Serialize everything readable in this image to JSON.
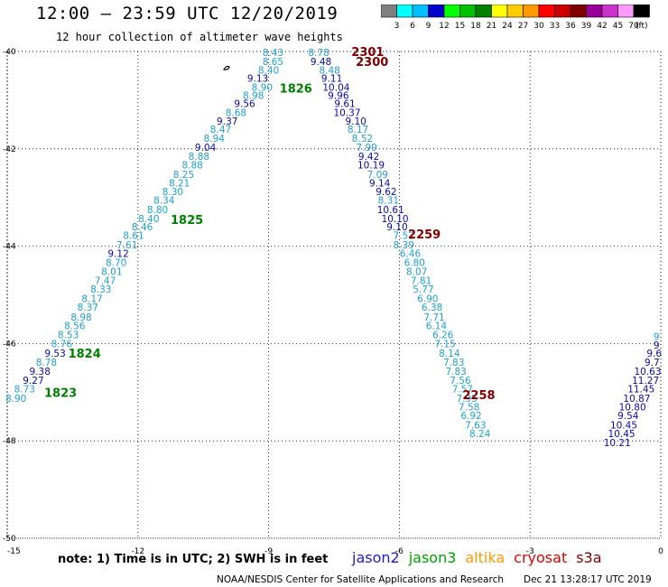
{
  "header": {
    "title": "12:00 – 23:59 UTC 12/20/2019",
    "subtitle": "12 hour collection of altimeter wave heights"
  },
  "legend": {
    "unit": "(ft)",
    "bins": [
      {
        "label": "3",
        "color": "#808080"
      },
      {
        "label": "6",
        "color": "#00ffff"
      },
      {
        "label": "9",
        "color": "#00bfff"
      },
      {
        "label": "12",
        "color": "#0000cd"
      },
      {
        "label": "15",
        "color": "#00ff00"
      },
      {
        "label": "18",
        "color": "#00c000"
      },
      {
        "label": "21",
        "color": "#008000"
      },
      {
        "label": "24",
        "color": "#ffff00"
      },
      {
        "label": "27",
        "color": "#ffcc00"
      },
      {
        "label": "30",
        "color": "#ff9900"
      },
      {
        "label": "33",
        "color": "#ff0000"
      },
      {
        "label": "36",
        "color": "#cc0000"
      },
      {
        "label": "39",
        "color": "#800000"
      },
      {
        "label": "42",
        "color": "#990099"
      },
      {
        "label": "45",
        "color": "#cc33cc"
      },
      {
        "label": "70",
        "color": "#ff99ff"
      },
      {
        "label": "",
        "color": "#000000"
      }
    ]
  },
  "map": {
    "lon_range": [
      -15,
      0
    ],
    "lat_range": [
      -50,
      -40
    ],
    "lon_ticks": [
      "-15",
      "-12",
      "-9",
      "-6",
      "-3",
      "0"
    ],
    "lat_ticks": [
      "-40",
      "-42",
      "-44",
      "-46",
      "-48",
      "-50"
    ],
    "grid": "dotted",
    "colors": {
      "light": "#1ea0d2",
      "dark": "#0a0ab4",
      "pass_green": "#008000",
      "pass_red": "#800000"
    },
    "tracks": [
      {
        "name": "west-track",
        "pass_labels": [
          {
            "text": "1826",
            "color": "pass_green",
            "lon": -8.75,
            "lat": -40.75
          },
          {
            "text": "1825",
            "color": "pass_green",
            "lon": -11.25,
            "lat": -43.45
          },
          {
            "text": "1824",
            "color": "pass_green",
            "lon": -13.6,
            "lat": -46.2
          },
          {
            "text": "1823",
            "color": "pass_green",
            "lon": -14.15,
            "lat": -47.0
          }
        ],
        "points": [
          {
            "v": "8.43",
            "c": "light",
            "lon": -8.9,
            "lat": -40.02
          },
          {
            "v": "8.65",
            "c": "light",
            "lon": -8.9,
            "lat": -40.2
          },
          {
            "v": "8.40",
            "c": "light",
            "lon": -9.0,
            "lat": -40.38
          },
          {
            "v": "9.13",
            "c": "dark",
            "lon": -9.25,
            "lat": -40.55
          },
          {
            "v": "8.90",
            "c": "light",
            "lon": -9.15,
            "lat": -40.73
          },
          {
            "v": "8.98",
            "c": "light",
            "lon": -9.35,
            "lat": -40.9
          },
          {
            "v": "9.56",
            "c": "dark",
            "lon": -9.55,
            "lat": -41.07
          },
          {
            "v": "8.68",
            "c": "light",
            "lon": -9.75,
            "lat": -41.25
          },
          {
            "v": "9.37",
            "c": "dark",
            "lon": -9.95,
            "lat": -41.43
          },
          {
            "v": "8.47",
            "c": "light",
            "lon": -10.1,
            "lat": -41.6
          },
          {
            "v": "8.94",
            "c": "light",
            "lon": -10.25,
            "lat": -41.78
          },
          {
            "v": "9.04",
            "c": "dark",
            "lon": -10.45,
            "lat": -41.97
          },
          {
            "v": "8.88",
            "c": "light",
            "lon": -10.6,
            "lat": -42.15
          },
          {
            "v": "8.88",
            "c": "light",
            "lon": -10.75,
            "lat": -42.33
          },
          {
            "v": "8.25",
            "c": "light",
            "lon": -10.95,
            "lat": -42.52
          },
          {
            "v": "8.21",
            "c": "light",
            "lon": -11.05,
            "lat": -42.7
          },
          {
            "v": "8.30",
            "c": "light",
            "lon": -11.2,
            "lat": -42.88
          },
          {
            "v": "8.34",
            "c": "light",
            "lon": -11.4,
            "lat": -43.05
          },
          {
            "v": "8.80",
            "c": "light",
            "lon": -11.55,
            "lat": -43.25
          },
          {
            "v": "8.40",
            "c": "light",
            "lon": -11.75,
            "lat": -43.43
          },
          {
            "v": "8.46",
            "c": "light",
            "lon": -11.9,
            "lat": -43.6
          },
          {
            "v": "8.61",
            "c": "light",
            "lon": -12.1,
            "lat": -43.78
          },
          {
            "v": "7.61",
            "c": "light",
            "lon": -12.25,
            "lat": -43.97
          },
          {
            "v": "9.12",
            "c": "dark",
            "lon": -12.45,
            "lat": -44.15
          },
          {
            "v": "8.70",
            "c": "light",
            "lon": -12.5,
            "lat": -44.33
          },
          {
            "v": "8.01",
            "c": "light",
            "lon": -12.6,
            "lat": -44.52
          },
          {
            "v": "7.47",
            "c": "light",
            "lon": -12.75,
            "lat": -44.7
          },
          {
            "v": "8.33",
            "c": "light",
            "lon": -12.85,
            "lat": -44.88
          },
          {
            "v": "8.17",
            "c": "light",
            "lon": -13.05,
            "lat": -45.07
          },
          {
            "v": "8.37",
            "c": "light",
            "lon": -13.15,
            "lat": -45.25
          },
          {
            "v": "8.98",
            "c": "light",
            "lon": -13.3,
            "lat": -45.45
          },
          {
            "v": "8.56",
            "c": "light",
            "lon": -13.45,
            "lat": -45.63
          },
          {
            "v": "8.53",
            "c": "light",
            "lon": -13.6,
            "lat": -45.82
          },
          {
            "v": "8.76",
            "c": "light",
            "lon": -13.75,
            "lat": -46.0
          },
          {
            "v": "9.53",
            "c": "dark",
            "lon": -13.9,
            "lat": -46.2
          },
          {
            "v": "8.78",
            "c": "light",
            "lon": -14.1,
            "lat": -46.38
          },
          {
            "v": "9.38",
            "c": "dark",
            "lon": -14.25,
            "lat": -46.57
          },
          {
            "v": "9.27",
            "c": "dark",
            "lon": -14.4,
            "lat": -46.75
          },
          {
            "v": "8.73",
            "c": "light",
            "lon": -14.6,
            "lat": -46.93
          },
          {
            "v": "8.90",
            "c": "light",
            "lon": -14.8,
            "lat": -47.12
          }
        ]
      },
      {
        "name": "middle-track",
        "pass_labels": [
          {
            "text": "2301",
            "color": "pass_red",
            "lon": -7.1,
            "lat": -40.0
          },
          {
            "text": "2300",
            "color": "pass_red",
            "lon": -7.0,
            "lat": -40.2
          },
          {
            "text": "2259",
            "color": "pass_red",
            "lon": -5.8,
            "lat": -43.75
          },
          {
            "text": "2258",
            "color": "pass_red",
            "lon": -4.55,
            "lat": -47.05
          }
        ],
        "points": [
          {
            "v": "8.78",
            "c": "light",
            "lon": -7.85,
            "lat": -40.02
          },
          {
            "v": "9.48",
            "c": "dark",
            "lon": -7.8,
            "lat": -40.2
          },
          {
            "v": "8.48",
            "c": "light",
            "lon": -7.6,
            "lat": -40.38
          },
          {
            "v": "9.11",
            "c": "dark",
            "lon": -7.55,
            "lat": -40.55
          },
          {
            "v": "10.04",
            "c": "dark",
            "lon": -7.45,
            "lat": -40.73
          },
          {
            "v": "9.96",
            "c": "dark",
            "lon": -7.4,
            "lat": -40.9
          },
          {
            "v": "9.61",
            "c": "dark",
            "lon": -7.25,
            "lat": -41.07
          },
          {
            "v": "10.37",
            "c": "dark",
            "lon": -7.2,
            "lat": -41.25
          },
          {
            "v": "9.10",
            "c": "dark",
            "lon": -7.0,
            "lat": -41.43
          },
          {
            "v": "8.17",
            "c": "light",
            "lon": -6.95,
            "lat": -41.6
          },
          {
            "v": "8.52",
            "c": "light",
            "lon": -6.85,
            "lat": -41.78
          },
          {
            "v": "7.99",
            "c": "light",
            "lon": -6.75,
            "lat": -41.97
          },
          {
            "v": "9.42",
            "c": "dark",
            "lon": -6.7,
            "lat": -42.15
          },
          {
            "v": "10.19",
            "c": "dark",
            "lon": -6.65,
            "lat": -42.33
          },
          {
            "v": "7.09",
            "c": "light",
            "lon": -6.5,
            "lat": -42.52
          },
          {
            "v": "9.14",
            "c": "dark",
            "lon": -6.45,
            "lat": -42.7
          },
          {
            "v": "9.62",
            "c": "dark",
            "lon": -6.3,
            "lat": -42.88
          },
          {
            "v": "8.31",
            "c": "light",
            "lon": -6.25,
            "lat": -43.05
          },
          {
            "v": "10.61",
            "c": "dark",
            "lon": -6.2,
            "lat": -43.25
          },
          {
            "v": "10.10",
            "c": "dark",
            "lon": -6.1,
            "lat": -43.43
          },
          {
            "v": "9.10",
            "c": "dark",
            "lon": -6.05,
            "lat": -43.6
          },
          {
            "v": "7.52",
            "c": "light",
            "lon": -5.9,
            "lat": -43.78
          },
          {
            "v": "8.39",
            "c": "light",
            "lon": -5.9,
            "lat": -43.97
          },
          {
            "v": "6.46",
            "c": "light",
            "lon": -5.75,
            "lat": -44.15
          },
          {
            "v": "6.80",
            "c": "light",
            "lon": -5.65,
            "lat": -44.33
          },
          {
            "v": "8.07",
            "c": "light",
            "lon": -5.6,
            "lat": -44.52
          },
          {
            "v": "7.81",
            "c": "light",
            "lon": -5.5,
            "lat": -44.7
          },
          {
            "v": "5.77",
            "c": "light",
            "lon": -5.45,
            "lat": -44.88
          },
          {
            "v": "6.90",
            "c": "light",
            "lon": -5.35,
            "lat": -45.07
          },
          {
            "v": "6.38",
            "c": "light",
            "lon": -5.25,
            "lat": -45.25
          },
          {
            "v": "7.71",
            "c": "light",
            "lon": -5.2,
            "lat": -45.45
          },
          {
            "v": "6.14",
            "c": "light",
            "lon": -5.15,
            "lat": -45.63
          },
          {
            "v": "6.26",
            "c": "light",
            "lon": -5.0,
            "lat": -45.82
          },
          {
            "v": "7.15",
            "c": "light",
            "lon": -4.95,
            "lat": -46.0
          },
          {
            "v": "8.14",
            "c": "light",
            "lon": -4.85,
            "lat": -46.2
          },
          {
            "v": "7.83",
            "c": "light",
            "lon": -4.75,
            "lat": -46.38
          },
          {
            "v": "7.83",
            "c": "light",
            "lon": -4.7,
            "lat": -46.57
          },
          {
            "v": "7.56",
            "c": "light",
            "lon": -4.6,
            "lat": -46.75
          },
          {
            "v": "7.57",
            "c": "light",
            "lon": -4.55,
            "lat": -46.93
          },
          {
            "v": "7.95",
            "c": "light",
            "lon": -4.45,
            "lat": -47.12
          },
          {
            "v": "7.58",
            "c": "light",
            "lon": -4.4,
            "lat": -47.3
          },
          {
            "v": "6.92",
            "c": "light",
            "lon": -4.35,
            "lat": -47.48
          },
          {
            "v": "7.63",
            "c": "light",
            "lon": -4.25,
            "lat": -47.67
          },
          {
            "v": "8.24",
            "c": "light",
            "lon": -4.15,
            "lat": -47.85
          }
        ]
      },
      {
        "name": "east-track",
        "pass_labels": [],
        "points": [
          {
            "v": "9",
            "c": "light",
            "lon": -0.1,
            "lat": -45.85
          },
          {
            "v": "9",
            "c": "dark",
            "lon": -0.1,
            "lat": -46.03
          },
          {
            "v": "9.6",
            "c": "dark",
            "lon": -0.15,
            "lat": -46.2
          },
          {
            "v": "9.7",
            "c": "dark",
            "lon": -0.2,
            "lat": -46.38
          },
          {
            "v": "10.63",
            "c": "dark",
            "lon": -0.3,
            "lat": -46.57
          },
          {
            "v": "11.27",
            "c": "dark",
            "lon": -0.35,
            "lat": -46.75
          },
          {
            "v": "11.45",
            "c": "dark",
            "lon": -0.45,
            "lat": -46.93
          },
          {
            "v": "10.87",
            "c": "dark",
            "lon": -0.55,
            "lat": -47.12
          },
          {
            "v": "10.80",
            "c": "dark",
            "lon": -0.65,
            "lat": -47.3
          },
          {
            "v": "9.54",
            "c": "dark",
            "lon": -0.75,
            "lat": -47.48
          },
          {
            "v": "10.45",
            "c": "dark",
            "lon": -0.85,
            "lat": -47.67
          },
          {
            "v": "10.45",
            "c": "dark",
            "lon": -0.9,
            "lat": -47.85
          },
          {
            "v": "10.21",
            "c": "dark",
            "lon": -1.0,
            "lat": -48.03
          }
        ]
      }
    ]
  },
  "note": "note: 1) Time is in UTC; 2) SWH is in feet",
  "satellites": [
    {
      "name": "jason2",
      "color": "#1a1ad2"
    },
    {
      "name": "jason3",
      "color": "#00a000"
    },
    {
      "name": "altika",
      "color": "#ff9900"
    },
    {
      "name": "cryosat",
      "color": "#e00000"
    },
    {
      "name": "s3a",
      "color": "#800000"
    }
  ],
  "footer": {
    "credit": "NOAA/NESDIS Center for Satellite Applications and Research",
    "timestamp": "Dec 21 13:28:17 UTC 2019"
  }
}
